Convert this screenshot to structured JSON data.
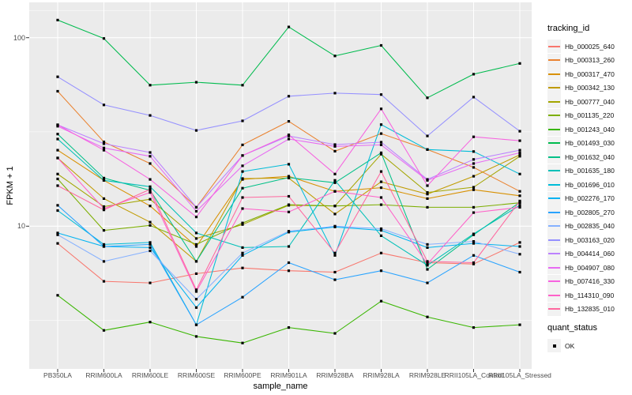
{
  "figure": {
    "y_axis": {
      "title": "FPKM + 1",
      "ticks": [
        "100",
        "10"
      ]
    },
    "x_axis": {
      "title": "sample_name"
    },
    "legends": {
      "tracking_title": "tracking_id",
      "quant_title": "quant_status",
      "quant_value": "OK"
    },
    "colors": {
      "panel_background": "#EBEBEB",
      "gridline": "#FFFFFF",
      "point": "#000000",
      "axis_text": "#4D4D4D",
      "legend_key_background": "#F2F2F2"
    }
  },
  "chart_data": {
    "type": "line",
    "title": "",
    "xlabel": "sample_name",
    "ylabel": "FPKM + 1",
    "y_scale": "log10",
    "ylim": [
      1.7,
      150
    ],
    "yticks": [
      100,
      10
    ],
    "grid": true,
    "legend_position": "right",
    "marker": "filled-black-square",
    "categories": [
      "PB350LA",
      "RRIM600LA",
      "RRIM600LE",
      "RRIM600SE",
      "RRIM600PE",
      "RRIM901LA",
      "RRIM928BA",
      "RRIM928LA",
      "RRIM928LE",
      "RRII105LA_Control",
      "RRII105LA_Stressed"
    ],
    "series": [
      {
        "name": "Hb_000025_640",
        "color": "#F8766D",
        "values": [
          8.1,
          5.1,
          5.0,
          5.6,
          6.0,
          5.8,
          5.7,
          7.2,
          6.4,
          6.3,
          8.2
        ]
      },
      {
        "name": "Hb_000313_260",
        "color": "#EA8331",
        "values": [
          52,
          28,
          21.5,
          12.6,
          27,
          36,
          25,
          31,
          25.5,
          20.5,
          15.3
        ]
      },
      {
        "name": "Hb_000317_470",
        "color": "#D89000",
        "values": [
          25.3,
          17.5,
          12.8,
          7.8,
          17.7,
          18.4,
          15.3,
          16.0,
          14.0,
          15.6,
          14.5
        ]
      },
      {
        "name": "Hb_000342_130",
        "color": "#C09B00",
        "values": [
          23.0,
          14.0,
          10.5,
          6.5,
          17.9,
          18.0,
          11.6,
          17.2,
          14.8,
          18.4,
          23.9
        ]
      },
      {
        "name": "Hb_000777_040",
        "color": "#A3A500",
        "values": [
          18.9,
          12.7,
          13.9,
          8.6,
          10.2,
          12.9,
          12.8,
          24.1,
          15.1,
          16.1,
          23.5
        ]
      },
      {
        "name": "Hb_001135_220",
        "color": "#7CAE00",
        "values": [
          17.8,
          9.5,
          10.1,
          8.0,
          10.4,
          13.0,
          12.8,
          13.0,
          12.6,
          12.6,
          13.3
        ]
      },
      {
        "name": "Hb_001243_040",
        "color": "#39B600",
        "values": [
          4.3,
          2.8,
          3.1,
          2.6,
          2.4,
          2.9,
          2.7,
          4.0,
          3.3,
          2.9,
          3.0
        ]
      },
      {
        "name": "Hb_001493_030",
        "color": "#00BB4E",
        "values": [
          124,
          99,
          56,
          58,
          56,
          114,
          80,
          91,
          48,
          64,
          73
        ]
      },
      {
        "name": "Hb_001632_040",
        "color": "#00C087",
        "values": [
          30.8,
          18.0,
          15.5,
          6.5,
          15.9,
          18.1,
          17.0,
          24.5,
          5.9,
          9.0,
          13.4
        ]
      },
      {
        "name": "Hb_001635_180",
        "color": "#00C0B8",
        "values": [
          29.0,
          17.5,
          16.2,
          9.2,
          7.7,
          7.8,
          17.5,
          8.9,
          6.2,
          9.1,
          12.9
        ]
      },
      {
        "name": "Hb_001696_010",
        "color": "#00BCD8",
        "values": [
          12.1,
          8.0,
          8.2,
          3.0,
          19.5,
          21.3,
          7.0,
          34.6,
          25.5,
          24.9,
          18.9
        ]
      },
      {
        "name": "Hb_002276_170",
        "color": "#00B3F2",
        "values": [
          9.2,
          7.8,
          7.7,
          3.7,
          7.0,
          9.3,
          9.9,
          9.5,
          7.7,
          8.1,
          7.8
        ]
      },
      {
        "name": "Hb_002805_270",
        "color": "#29A3FF",
        "values": [
          12.9,
          7.8,
          8.0,
          3.0,
          4.2,
          6.4,
          5.2,
          5.8,
          5.0,
          7.0,
          5.7
        ]
      },
      {
        "name": "Hb_002835_040",
        "color": "#86B1FF",
        "values": [
          9.0,
          6.5,
          7.4,
          4.1,
          7.2,
          9.4,
          10.0,
          9.7,
          8.0,
          8.3,
          7.1
        ]
      },
      {
        "name": "Hb_003163_020",
        "color": "#9590FF",
        "values": [
          62,
          44,
          38.7,
          32.2,
          36.2,
          48.9,
          50.8,
          49.9,
          30.1,
          48.4,
          31.9
        ]
      },
      {
        "name": "Hb_004414_060",
        "color": "#BC81FF",
        "values": [
          34.5,
          27.4,
          24.6,
          12.6,
          23.7,
          30.1,
          27.1,
          27.9,
          17.7,
          22.6,
          25.3
        ]
      },
      {
        "name": "Hb_004907_080",
        "color": "#E76BF3",
        "values": [
          33.9,
          26.0,
          23.5,
          12.0,
          20.9,
          29.0,
          26.5,
          27.0,
          17.5,
          21.5,
          24.5
        ]
      },
      {
        "name": "Hb_007416_330",
        "color": "#F763E0",
        "values": [
          34.5,
          25.3,
          17.7,
          11.2,
          23.7,
          30.5,
          18.9,
          41.9,
          16.4,
          29.8,
          28.4
        ]
      },
      {
        "name": "Hb_114310_090",
        "color": "#FF61C9",
        "values": [
          23.0,
          12.4,
          15.1,
          4.5,
          12.4,
          11.9,
          15.3,
          14.2,
          6.3,
          11.8,
          12.6
        ]
      },
      {
        "name": "Hb_132835_010",
        "color": "#FF689F",
        "values": [
          16.4,
          12.2,
          15.7,
          4.6,
          14.2,
          14.4,
          7.2,
          19.5,
          6.5,
          6.4,
          13.6
        ]
      }
    ]
  }
}
